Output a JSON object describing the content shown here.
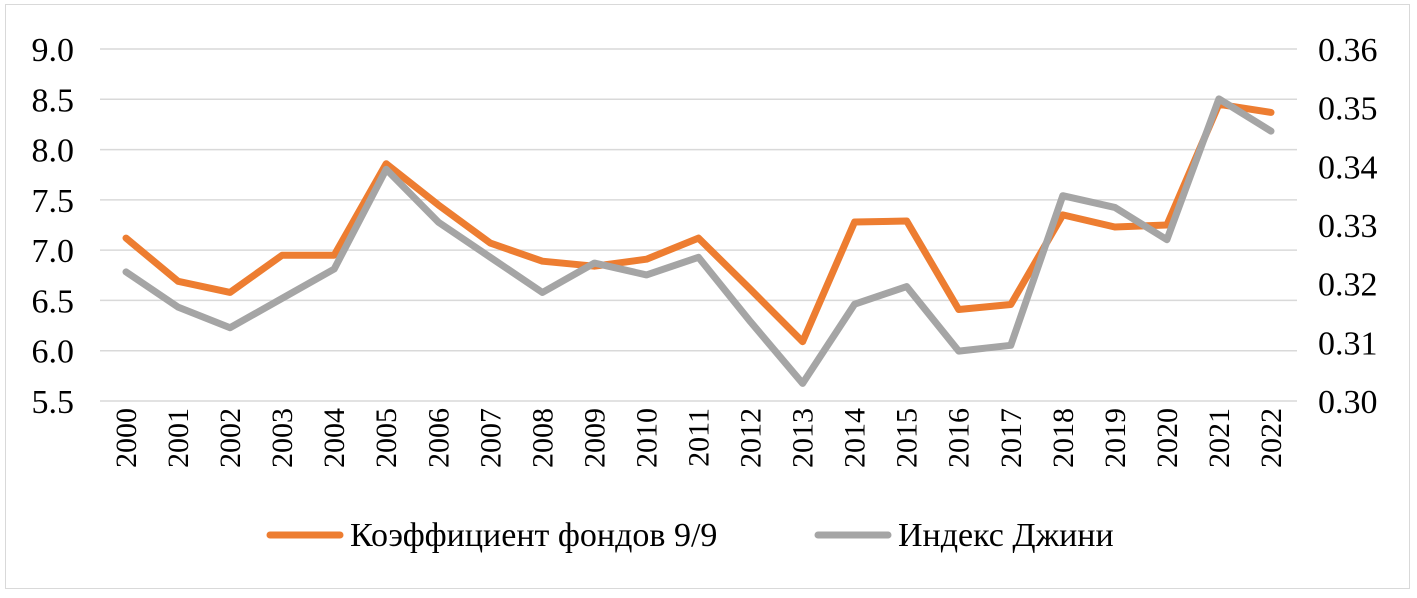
{
  "chart_data": {
    "type": "line",
    "title": "",
    "categories": [
      "2000",
      "2001",
      "2002",
      "2003",
      "2004",
      "2005",
      "2006",
      "2007",
      "2008",
      "2009",
      "2010",
      "2011",
      "2012",
      "2013",
      "2014",
      "2015",
      "2016",
      "2017",
      "2018",
      "2019",
      "2020",
      "2021",
      "2022"
    ],
    "series": [
      {
        "name": "Коэффициент фондов 9/9",
        "axis": "left",
        "color": "#ed7d31",
        "values": [
          7.12,
          6.69,
          6.58,
          6.95,
          6.95,
          7.86,
          7.45,
          7.07,
          6.89,
          6.84,
          6.91,
          7.12,
          6.61,
          6.09,
          7.28,
          7.29,
          6.41,
          6.46,
          7.35,
          7.23,
          7.25,
          8.45,
          8.37
        ]
      },
      {
        "name": "Индекс Джини",
        "axis": "right",
        "color": "#a5a5a5",
        "values": [
          0.322,
          0.316,
          0.3125,
          0.3175,
          0.3225,
          0.3395,
          0.3305,
          0.3245,
          0.3185,
          0.3235,
          0.3215,
          0.3245,
          0.3135,
          0.303,
          0.3165,
          0.3195,
          0.3085,
          0.3095,
          0.335,
          0.333,
          0.3275,
          0.3515,
          0.346
        ]
      }
    ],
    "y_left": {
      "ylim": [
        5.5,
        9.0
      ],
      "ticks": [
        "5.5",
        "6.0",
        "6.5",
        "7.0",
        "7.5",
        "8.0",
        "8.5",
        "9.0"
      ]
    },
    "y_right": {
      "ylim": [
        0.3,
        0.36
      ],
      "ticks": [
        "0.30",
        "0.31",
        "0.32",
        "0.33",
        "0.34",
        "0.35",
        "0.36"
      ]
    },
    "xlabel": "",
    "ylabel": "",
    "grid": true,
    "legend": "bottom"
  }
}
